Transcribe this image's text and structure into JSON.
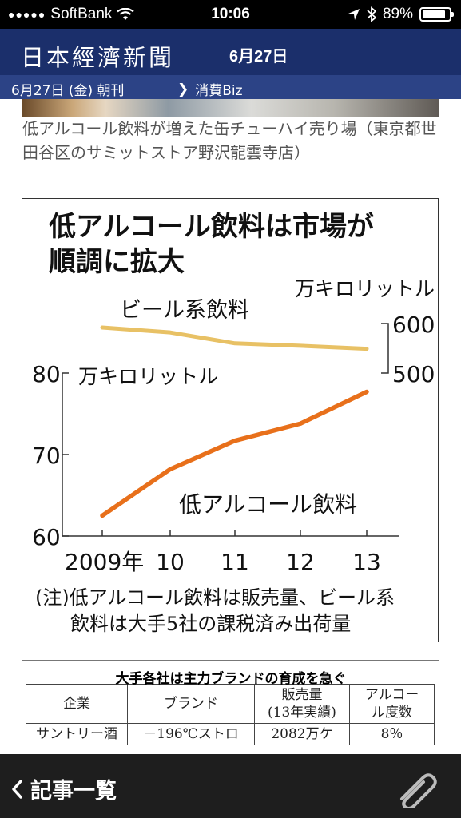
{
  "status": {
    "carrier": "SoftBank",
    "time": "10:06",
    "battery": "89%",
    "battery_level": 0.89,
    "signal_dots": "●●●●●"
  },
  "masthead": {
    "logo": "日本經濟新聞",
    "date": "6月27日"
  },
  "subbar": {
    "edition": "6月27日 (金) 朝刊",
    "chevron": "❯",
    "category": "消費Biz"
  },
  "caption": "低アルコール飲料が増えた缶チューハイ売り場（東京都世田谷区のサミットストア野沢龍雲寺店）",
  "chart_data": {
    "type": "line",
    "title": "低アルコール飲料は市場が順調に拡大",
    "title_lines": [
      "低アルコール飲料は市場が",
      "順調に拡大"
    ],
    "categories": [
      "2009年",
      "10",
      "11",
      "12",
      "13"
    ],
    "series": [
      {
        "name": "ビール系飲料",
        "values": [
          592,
          582,
          560,
          555,
          549
        ],
        "color": "#e8c165",
        "axis": "right"
      },
      {
        "name": "低アルコール飲料",
        "values": [
          62.5,
          68.2,
          71.7,
          73.8,
          77.7
        ],
        "color": "#e8701b",
        "axis": "left"
      }
    ],
    "left_axis": {
      "unit": "万キロリットル",
      "ticks": [
        60,
        70,
        80
      ],
      "ylim": [
        60,
        80
      ]
    },
    "right_axis": {
      "unit": "万キロリットル",
      "ticks": [
        500,
        600
      ],
      "ylim": [
        500,
        600
      ]
    },
    "note": [
      "(注)低アルコール飲料は販売量、ビール系",
      "飲料は大手5社の課税済み出荷量"
    ]
  },
  "table": {
    "title": "大手各社は主力ブランドの育成を急ぐ",
    "headers": [
      "企業",
      "ブランド",
      "販売量\n(13年実績)",
      "アルコー\nル度数"
    ],
    "row": [
      "サントリー酒",
      "－196℃ストロ",
      "2082万ケ",
      "8％"
    ]
  },
  "bottom": {
    "back_label": "記事一覧",
    "back_icon": "chevron-left-icon",
    "attach_icon": "paperclip-icon"
  }
}
